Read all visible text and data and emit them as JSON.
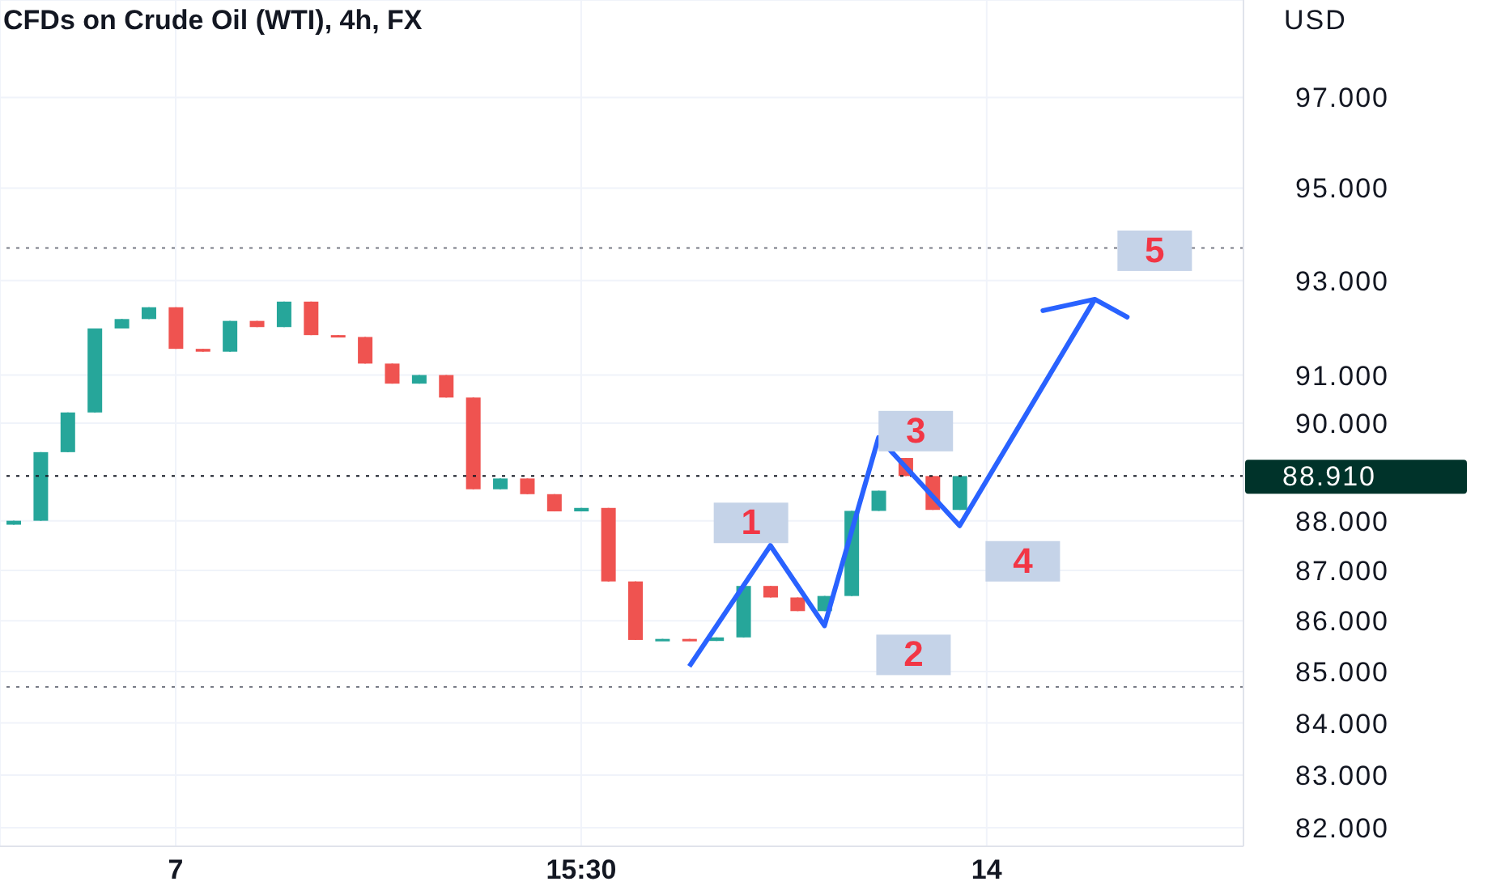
{
  "chart_data": {
    "type": "candlestick",
    "title": "CFDs on Crude Oil (WTI), 4h, FX",
    "ylabel": "USD",
    "categories": [
      null,
      null,
      null,
      null,
      null,
      null,
      "7",
      null,
      null,
      null,
      null,
      null,
      null,
      null,
      null,
      null,
      null,
      null,
      null,
      null,
      null,
      "15:30",
      null,
      null,
      null,
      null,
      null,
      null,
      null,
      null,
      null,
      null,
      null,
      null,
      null,
      null,
      "14",
      null,
      null,
      null,
      null,
      null,
      null,
      null,
      null,
      null
    ],
    "ohlc": [
      [
        87.92,
        88.0,
        87.92,
        88.0
      ],
      [
        88.0,
        89.4,
        88.0,
        89.4
      ],
      [
        89.4,
        90.22,
        89.4,
        90.22
      ],
      [
        90.22,
        91.98,
        90.22,
        91.98
      ],
      [
        91.98,
        92.18,
        91.98,
        92.18
      ],
      [
        92.18,
        92.43,
        92.18,
        92.43
      ],
      [
        92.43,
        92.43,
        91.55,
        91.55
      ],
      [
        91.55,
        91.55,
        91.49,
        91.49
      ],
      [
        91.49,
        92.14,
        91.49,
        92.14
      ],
      [
        92.14,
        92.14,
        92.01,
        92.01
      ],
      [
        92.01,
        92.55,
        92.01,
        92.55
      ],
      [
        92.55,
        92.55,
        91.84,
        91.84
      ],
      [
        91.84,
        91.84,
        91.8,
        91.8
      ],
      [
        91.8,
        91.8,
        91.24,
        91.24
      ],
      [
        91.24,
        91.24,
        90.82,
        90.82
      ],
      [
        90.82,
        91.0,
        90.82,
        91.0
      ],
      [
        91.0,
        91.0,
        90.53,
        90.53
      ],
      [
        90.53,
        90.53,
        88.64,
        88.64
      ],
      [
        88.64,
        88.86,
        88.64,
        88.86
      ],
      [
        88.86,
        88.86,
        88.54,
        88.54
      ],
      [
        88.54,
        88.54,
        88.19,
        88.19
      ],
      [
        88.19,
        88.26,
        88.19,
        88.26
      ],
      [
        88.26,
        88.26,
        86.78,
        86.78
      ],
      [
        86.78,
        86.78,
        85.62,
        85.62
      ],
      [
        85.62,
        85.64,
        85.62,
        85.64
      ],
      [
        85.64,
        85.64,
        85.6,
        85.6
      ],
      [
        85.6,
        85.67,
        85.6,
        85.67
      ],
      [
        85.67,
        86.69,
        85.67,
        86.69
      ],
      [
        86.69,
        86.69,
        86.46,
        86.46
      ],
      [
        86.46,
        86.46,
        86.19,
        86.19
      ],
      [
        86.19,
        86.49,
        86.19,
        86.49
      ],
      [
        86.49,
        88.2,
        86.49,
        88.2
      ],
      [
        88.2,
        88.61,
        88.2,
        88.61
      ],
      [
        89.28,
        89.28,
        88.91,
        88.91
      ],
      [
        88.91,
        88.91,
        88.22,
        88.22
      ],
      [
        88.22,
        88.91,
        88.22,
        88.91
      ],
      null,
      null,
      null,
      null,
      null,
      null,
      null,
      null,
      null,
      null
    ],
    "colors": [
      "#26a69a",
      "#26a69a",
      "#26a69a",
      "#26a69a",
      "#26a69a",
      "#26a69a",
      "#ef5350",
      "#ef5350",
      "#26a69a",
      "#ef5350",
      "#26a69a",
      "#ef5350",
      "#ef5350",
      "#ef5350",
      "#ef5350",
      "#26a69a",
      "#ef5350",
      "#ef5350",
      "#26a69a",
      "#ef5350",
      "#ef5350",
      "#26a69a",
      "#ef5350",
      "#ef5350",
      "#26a69a",
      "#ef5350",
      "#26a69a",
      "#26a69a",
      "#ef5350",
      "#ef5350",
      "#26a69a",
      "#26a69a",
      "#26a69a",
      "#ef5350",
      "#ef5350",
      "#26a69a",
      null,
      null,
      null,
      null,
      null,
      null,
      null,
      null,
      null,
      null
    ],
    "series": [
      {
        "type": "line",
        "color": "#2962ff",
        "values": [
          null,
          null,
          null,
          null,
          null,
          null,
          null,
          null,
          null,
          null,
          null,
          null,
          null,
          null,
          null,
          null,
          null,
          null,
          null,
          null,
          null,
          null,
          null,
          null,
          null,
          85.1,
          null,
          null,
          87.5,
          null,
          85.9,
          null,
          89.7,
          null,
          null,
          87.9,
          null,
          null,
          null,
          null,
          92.6,
          null,
          null,
          null,
          null,
          null
        ]
      }
    ],
    "log": true,
    "ylim": [
      81.65,
      99.2
    ],
    "yticks": [
      {
        "value": 82,
        "label": "82.000"
      },
      {
        "value": 83,
        "label": "83.000"
      },
      {
        "value": 84,
        "label": "84.000"
      },
      {
        "value": 85,
        "label": "85.000"
      },
      {
        "value": 86,
        "label": "86.000"
      },
      {
        "value": 87,
        "label": "87.000"
      },
      {
        "value": 88,
        "label": "88.000"
      },
      {
        "value": 90,
        "label": "90.000"
      },
      {
        "value": 91,
        "label": "91.000"
      },
      {
        "value": 93,
        "label": "93.000"
      },
      {
        "value": 95,
        "label": "95.000"
      },
      {
        "value": 97,
        "label": "97.000"
      }
    ],
    "grid": true,
    "marker": "none",
    "line_style": "solid",
    "ref_lines": [
      {
        "axis": "y",
        "value": 88.91,
        "label": "88.910",
        "color": "#131722",
        "line_style": "dotted"
      },
      {
        "axis": "y",
        "value": 93.7,
        "color": "#787b86",
        "line_style": "dotted"
      },
      {
        "axis": "y",
        "value": 84.7,
        "color": "#787b86",
        "line_style": "dotted"
      }
    ],
    "annotations": [
      "1",
      "2",
      "3",
      "4",
      "5"
    ]
  }
}
